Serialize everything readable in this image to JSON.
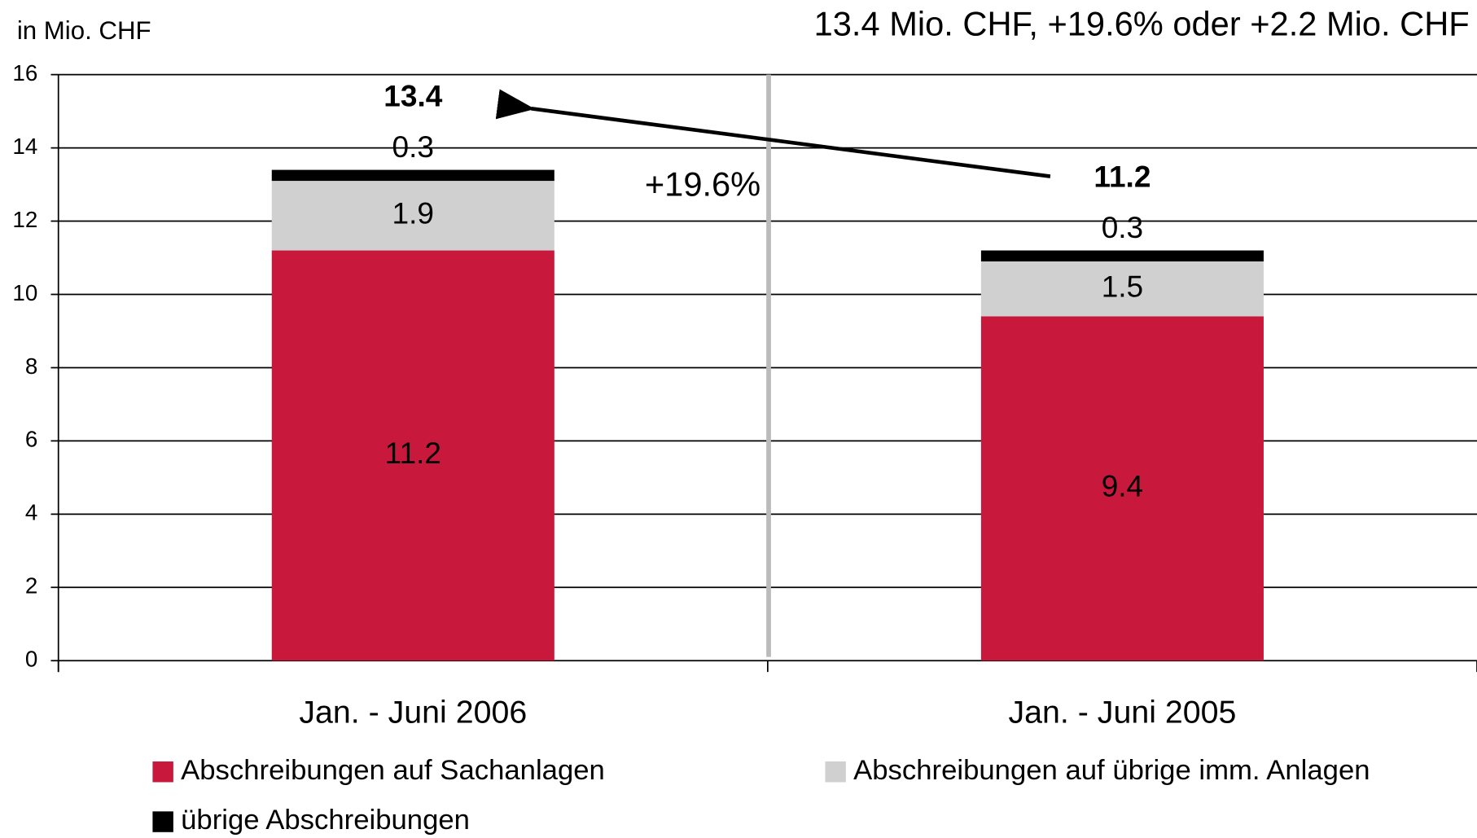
{
  "chart_data": {
    "type": "stacked_bar",
    "title": "13.4 Mio. CHF, +19.6% oder +2.2 Mio. CHF",
    "y_axis_label": "in Mio. CHF",
    "annotation": "+19.6%",
    "categories": [
      "Jan. - Juni 2006",
      "Jan. - Juni 2005"
    ],
    "series": [
      {
        "name": "Abschreibungen auf Sachanlagen",
        "color": "#c8193c",
        "values": [
          11.2,
          9.4
        ]
      },
      {
        "name": "Abschreibungen auf übrige imm. Anlagen",
        "color": "#d0d0d0",
        "values": [
          1.9,
          1.5
        ]
      },
      {
        "name": "übrige Abschreibungen",
        "color": "#000000",
        "values": [
          0.3,
          0.3
        ]
      }
    ],
    "totals": [
      13.4,
      11.2
    ],
    "ylim": [
      0,
      16
    ],
    "yticks": [
      0,
      2,
      4,
      6,
      8,
      10,
      12,
      14,
      16
    ],
    "grid": true
  }
}
